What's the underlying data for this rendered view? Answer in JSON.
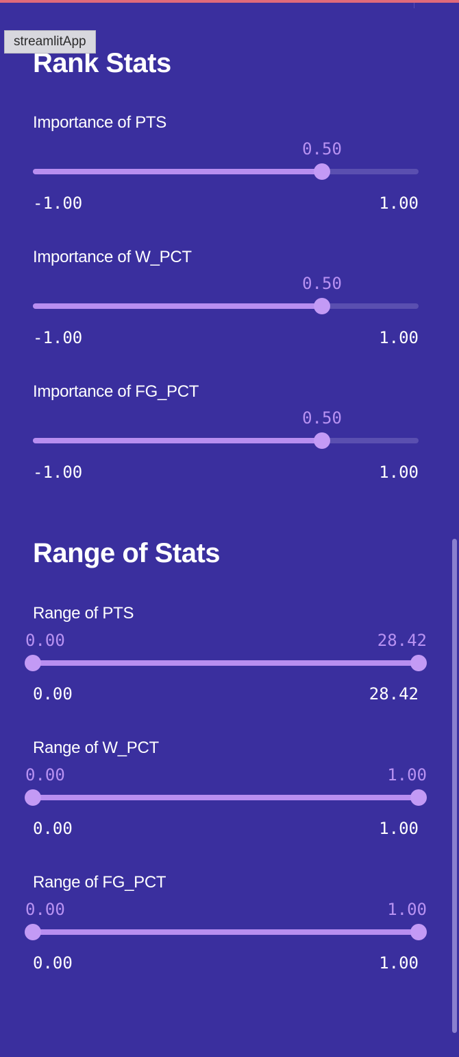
{
  "app": {
    "tooltip": "streamlitApp"
  },
  "rank_stats": {
    "heading": "Rank Stats",
    "sliders": [
      {
        "label": "Importance of PTS",
        "value": "0.50",
        "value_num": 0.5,
        "min": "-1.00",
        "max": "1.00",
        "min_num": -1.0,
        "max_num": 1.0
      },
      {
        "label": "Importance of W_PCT",
        "value": "0.50",
        "value_num": 0.5,
        "min": "-1.00",
        "max": "1.00",
        "min_num": -1.0,
        "max_num": 1.0
      },
      {
        "label": "Importance of FG_PCT",
        "value": "0.50",
        "value_num": 0.5,
        "min": "-1.00",
        "max": "1.00",
        "min_num": -1.0,
        "max_num": 1.0
      }
    ]
  },
  "range_stats": {
    "heading": "Range of Stats",
    "sliders": [
      {
        "label": "Range of PTS",
        "low": "0.00",
        "high": "28.42",
        "min": "0.00",
        "max": "28.42"
      },
      {
        "label": "Range of W_PCT",
        "low": "0.00",
        "high": "1.00",
        "min": "0.00",
        "max": "1.00"
      },
      {
        "label": "Range of FG_PCT",
        "low": "0.00",
        "high": "1.00",
        "min": "0.00",
        "max": "1.00"
      }
    ]
  },
  "colors": {
    "background": "#3a2f9e",
    "accent": "#b88ef0",
    "track": "#5a4fb0"
  },
  "icons": {
    "slider_thumb": "circle-handle"
  }
}
